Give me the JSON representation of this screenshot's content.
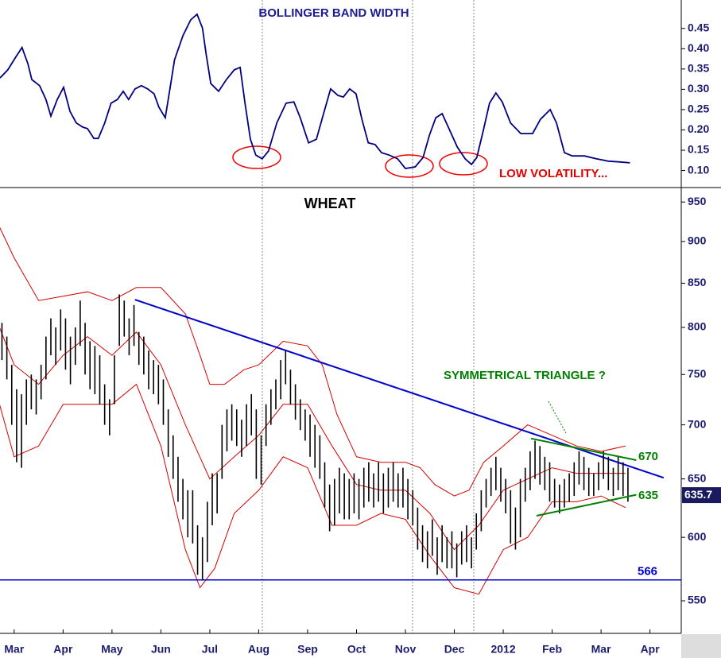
{
  "chart_data": [
    {
      "type": "line",
      "title": "BOLLINGER BAND WIDTH",
      "annotation": "LOW VOLATILITY...",
      "color": "#000080",
      "xlim": [
        -0.29,
        13.64
      ],
      "ylim": [
        0.06,
        0.52
      ],
      "yticks": [
        {
          "value": 0.1,
          "label": "0.10"
        },
        0.15,
        {
          "value": 0.2,
          "label": "0.20"
        },
        0.25,
        {
          "value": 0.3,
          "label": "0.30"
        },
        0.35,
        {
          "value": 0.4,
          "label": "0.40"
        },
        0.45
      ],
      "x": [
        -0.29,
        -0.13,
        0.03,
        0.16,
        0.28,
        0.36,
        0.52,
        0.65,
        0.75,
        0.88,
        1.01,
        1.14,
        1.27,
        1.4,
        1.5,
        1.63,
        1.72,
        1.85,
        1.98,
        2.11,
        2.23,
        2.34,
        2.47,
        2.6,
        2.73,
        2.86,
        2.96,
        3.09,
        3.19,
        3.28,
        3.45,
        3.61,
        3.74,
        3.85,
        3.93,
        4.02,
        4.18,
        4.34,
        4.5,
        4.62,
        4.72,
        4.83,
        4.94,
        5.07,
        5.2,
        5.37,
        5.56,
        5.72,
        5.85,
        6.02,
        6.18,
        6.34,
        6.47,
        6.62,
        6.73,
        6.86,
        6.99,
        7.11,
        7.24,
        7.38,
        7.51,
        7.67,
        7.84,
        8,
        8.2,
        8.36,
        8.49,
        8.62,
        8.75,
        8.89,
        9.06,
        9.22,
        9.35,
        9.46,
        9.59,
        9.72,
        9.85,
        9.98,
        10.15,
        10.36,
        10.6,
        10.76,
        10.96,
        11.09,
        11.25,
        11.41,
        11.66,
        11.9,
        12.15,
        12.39,
        12.59
      ],
      "values": [
        0.328,
        0.348,
        0.379,
        0.403,
        0.363,
        0.324,
        0.309,
        0.275,
        0.234,
        0.275,
        0.305,
        0.246,
        0.217,
        0.207,
        0.203,
        0.179,
        0.179,
        0.217,
        0.266,
        0.275,
        0.295,
        0.275,
        0.301,
        0.309,
        0.301,
        0.289,
        0.256,
        0.23,
        0.305,
        0.373,
        0.432,
        0.471,
        0.485,
        0.451,
        0.383,
        0.314,
        0.295,
        0.324,
        0.348,
        0.354,
        0.266,
        0.177,
        0.138,
        0.129,
        0.148,
        0.217,
        0.266,
        0.269,
        0.23,
        0.168,
        0.177,
        0.246,
        0.301,
        0.285,
        0.281,
        0.301,
        0.289,
        0.226,
        0.168,
        0.164,
        0.144,
        0.138,
        0.129,
        0.105,
        0.109,
        0.132,
        0.187,
        0.23,
        0.24,
        0.203,
        0.158,
        0.129,
        0.115,
        0.132,
        0.197,
        0.266,
        0.291,
        0.269,
        0.217,
        0.191,
        0.191,
        0.226,
        0.25,
        0.217,
        0.144,
        0.136,
        0.136,
        0.129,
        0.123,
        0.121,
        0.119
      ]
    },
    {
      "type": "range-bar",
      "title": "WHEAT",
      "annotation": "SYMMETRICAL TRIANGLE ?",
      "log_scale": true,
      "color": "#000000",
      "xlim": [
        -0.29,
        13.64
      ],
      "ylim": [
        526,
        968
      ],
      "yticks": [
        550,
        600,
        650,
        700,
        750,
        800,
        850,
        900,
        950
      ],
      "xticks": [
        {
          "value": 0,
          "label": "Mar"
        },
        {
          "value": 1,
          "label": "Apr"
        },
        {
          "value": 2,
          "label": "May"
        },
        {
          "value": 3,
          "label": "Jun"
        },
        {
          "value": 4,
          "label": "Jul"
        },
        {
          "value": 5,
          "label": "Aug"
        },
        {
          "value": 6,
          "label": "Sep"
        },
        {
          "value": 7,
          "label": "Oct"
        },
        {
          "value": 8,
          "label": "Nov"
        },
        {
          "value": 9,
          "label": "Dec"
        },
        {
          "value": 10,
          "label": "2012"
        },
        {
          "value": 11,
          "label": "Feb"
        },
        {
          "value": 12,
          "label": "Mar"
        },
        {
          "value": 13,
          "label": "Apr"
        }
      ],
      "bars": [
        {
          "x": -0.25,
          "high": 805,
          "low": 765
        },
        {
          "x": -0.15,
          "high": 790,
          "low": 745
        },
        {
          "x": -0.05,
          "high": 760,
          "low": 700
        },
        {
          "x": 0.05,
          "high": 735,
          "low": 665
        },
        {
          "x": 0.15,
          "high": 730,
          "low": 660
        },
        {
          "x": 0.25,
          "high": 745,
          "low": 700
        },
        {
          "x": 0.35,
          "high": 750,
          "low": 715
        },
        {
          "x": 0.45,
          "high": 745,
          "low": 710
        },
        {
          "x": 0.55,
          "high": 760,
          "low": 725
        },
        {
          "x": 0.65,
          "high": 790,
          "low": 745
        },
        {
          "x": 0.75,
          "high": 810,
          "low": 770
        },
        {
          "x": 0.85,
          "high": 800,
          "low": 760
        },
        {
          "x": 0.95,
          "high": 820,
          "low": 775
        },
        {
          "x": 1.05,
          "high": 810,
          "low": 755
        },
        {
          "x": 1.15,
          "high": 790,
          "low": 740
        },
        {
          "x": 1.25,
          "high": 800,
          "low": 760
        },
        {
          "x": 1.35,
          "high": 830,
          "low": 780
        },
        {
          "x": 1.45,
          "high": 805,
          "low": 750
        },
        {
          "x": 1.55,
          "high": 785,
          "low": 735
        },
        {
          "x": 1.65,
          "high": 780,
          "low": 730
        },
        {
          "x": 1.75,
          "high": 770,
          "low": 720
        },
        {
          "x": 1.85,
          "high": 740,
          "low": 700
        },
        {
          "x": 1.95,
          "high": 725,
          "low": 690
        },
        {
          "x": 2.05,
          "high": 770,
          "low": 720
        },
        {
          "x": 2.15,
          "high": 837,
          "low": 780
        },
        {
          "x": 2.25,
          "high": 830,
          "low": 790
        },
        {
          "x": 2.35,
          "high": 810,
          "low": 770
        },
        {
          "x": 2.45,
          "high": 825,
          "low": 780
        },
        {
          "x": 2.55,
          "high": 795,
          "low": 760
        },
        {
          "x": 2.65,
          "high": 790,
          "low": 750
        },
        {
          "x": 2.75,
          "high": 775,
          "low": 735
        },
        {
          "x": 2.85,
          "high": 765,
          "low": 730
        },
        {
          "x": 2.95,
          "high": 760,
          "low": 720
        },
        {
          "x": 3.05,
          "high": 745,
          "low": 700
        },
        {
          "x": 3.15,
          "high": 715,
          "low": 670
        },
        {
          "x": 3.25,
          "high": 690,
          "low": 650
        },
        {
          "x": 3.35,
          "high": 670,
          "low": 630
        },
        {
          "x": 3.45,
          "high": 650,
          "low": 615
        },
        {
          "x": 3.55,
          "high": 640,
          "low": 600
        },
        {
          "x": 3.65,
          "high": 640,
          "low": 595
        },
        {
          "x": 3.75,
          "high": 610,
          "low": 570
        },
        {
          "x": 3.85,
          "high": 600,
          "low": 566
        },
        {
          "x": 3.95,
          "high": 630,
          "low": 580
        },
        {
          "x": 4.05,
          "high": 655,
          "low": 610
        },
        {
          "x": 4.15,
          "high": 655,
          "low": 620
        },
        {
          "x": 4.25,
          "high": 700,
          "low": 650
        },
        {
          "x": 4.35,
          "high": 715,
          "low": 675
        },
        {
          "x": 4.45,
          "high": 720,
          "low": 685
        },
        {
          "x": 4.55,
          "high": 715,
          "low": 680
        },
        {
          "x": 4.65,
          "high": 705,
          "low": 670
        },
        {
          "x": 4.75,
          "high": 720,
          "low": 680
        },
        {
          "x": 4.85,
          "high": 730,
          "low": 690
        },
        {
          "x": 4.95,
          "high": 715,
          "low": 650
        },
        {
          "x": 5.05,
          "high": 690,
          "low": 645
        },
        {
          "x": 5.15,
          "high": 720,
          "low": 680
        },
        {
          "x": 5.25,
          "high": 735,
          "low": 700
        },
        {
          "x": 5.35,
          "high": 745,
          "low": 715
        },
        {
          "x": 5.45,
          "high": 765,
          "low": 725
        },
        {
          "x": 5.55,
          "high": 775,
          "low": 740
        },
        {
          "x": 5.65,
          "high": 755,
          "low": 720
        },
        {
          "x": 5.75,
          "high": 740,
          "low": 705
        },
        {
          "x": 5.85,
          "high": 725,
          "low": 695
        },
        {
          "x": 5.95,
          "high": 715,
          "low": 685
        },
        {
          "x": 6.05,
          "high": 710,
          "low": 670
        },
        {
          "x": 6.15,
          "high": 700,
          "low": 660
        },
        {
          "x": 6.25,
          "high": 690,
          "low": 650
        },
        {
          "x": 6.35,
          "high": 665,
          "low": 625
        },
        {
          "x": 6.45,
          "high": 645,
          "low": 605
        },
        {
          "x": 6.55,
          "high": 650,
          "low": 610
        },
        {
          "x": 6.65,
          "high": 660,
          "low": 620
        },
        {
          "x": 6.75,
          "high": 655,
          "low": 615
        },
        {
          "x": 6.85,
          "high": 650,
          "low": 615
        },
        {
          "x": 6.95,
          "high": 655,
          "low": 620
        },
        {
          "x": 7.05,
          "high": 650,
          "low": 615
        },
        {
          "x": 7.15,
          "high": 660,
          "low": 625
        },
        {
          "x": 7.25,
          "high": 665,
          "low": 630
        },
        {
          "x": 7.35,
          "high": 655,
          "low": 625
        },
        {
          "x": 7.45,
          "high": 665,
          "low": 630
        },
        {
          "x": 7.55,
          "high": 655,
          "low": 620
        },
        {
          "x": 7.65,
          "high": 660,
          "low": 625
        },
        {
          "x": 7.75,
          "high": 665,
          "low": 630
        },
        {
          "x": 7.85,
          "high": 655,
          "low": 625
        },
        {
          "x": 7.95,
          "high": 660,
          "low": 625
        },
        {
          "x": 8.05,
          "high": 650,
          "low": 615
        },
        {
          "x": 8.15,
          "high": 640,
          "low": 610
        },
        {
          "x": 8.25,
          "high": 625,
          "low": 590
        },
        {
          "x": 8.35,
          "high": 610,
          "low": 580
        },
        {
          "x": 8.45,
          "high": 605,
          "low": 575
        },
        {
          "x": 8.55,
          "high": 615,
          "low": 585
        },
        {
          "x": 8.65,
          "high": 600,
          "low": 570
        },
        {
          "x": 8.75,
          "high": 610,
          "low": 580
        },
        {
          "x": 8.85,
          "high": 600,
          "low": 575
        },
        {
          "x": 8.95,
          "high": 605,
          "low": 575
        },
        {
          "x": 9.05,
          "high": 595,
          "low": 568
        },
        {
          "x": 9.15,
          "high": 605,
          "low": 578
        },
        {
          "x": 9.25,
          "high": 610,
          "low": 580
        },
        {
          "x": 9.35,
          "high": 600,
          "low": 575
        },
        {
          "x": 9.45,
          "high": 620,
          "low": 590
        },
        {
          "x": 9.55,
          "high": 640,
          "low": 605
        },
        {
          "x": 9.65,
          "high": 650,
          "low": 625
        },
        {
          "x": 9.75,
          "high": 660,
          "low": 635
        },
        {
          "x": 9.85,
          "high": 670,
          "low": 640
        },
        {
          "x": 9.95,
          "high": 660,
          "low": 630
        },
        {
          "x": 10.05,
          "high": 650,
          "low": 620
        },
        {
          "x": 10.15,
          "high": 640,
          "low": 595
        },
        {
          "x": 10.25,
          "high": 625,
          "low": 590
        },
        {
          "x": 10.35,
          "high": 650,
          "low": 600
        },
        {
          "x": 10.45,
          "high": 660,
          "low": 630
        },
        {
          "x": 10.55,
          "high": 675,
          "low": 640
        },
        {
          "x": 10.65,
          "high": 685,
          "low": 650
        },
        {
          "x": 10.75,
          "high": 680,
          "low": 645
        },
        {
          "x": 10.85,
          "high": 670,
          "low": 640
        },
        {
          "x": 10.95,
          "high": 665,
          "low": 630
        },
        {
          "x": 11.05,
          "high": 650,
          "low": 625
        },
        {
          "x": 11.15,
          "high": 645,
          "low": 620
        },
        {
          "x": 11.25,
          "high": 650,
          "low": 625
        },
        {
          "x": 11.35,
          "high": 655,
          "low": 630
        },
        {
          "x": 11.45,
          "high": 665,
          "low": 635
        },
        {
          "x": 11.55,
          "high": 675,
          "low": 645
        },
        {
          "x": 11.65,
          "high": 670,
          "low": 640
        },
        {
          "x": 11.75,
          "high": 660,
          "low": 635
        },
        {
          "x": 11.85,
          "high": 655,
          "low": 635
        },
        {
          "x": 11.95,
          "high": 665,
          "low": 640
        },
        {
          "x": 12.05,
          "high": 675,
          "low": 650
        },
        {
          "x": 12.15,
          "high": 670,
          "low": 640
        },
        {
          "x": 12.25,
          "high": 660,
          "low": 635
        },
        {
          "x": 12.35,
          "high": 670,
          "low": 640
        },
        {
          "x": 12.45,
          "high": 665,
          "low": 635
        },
        {
          "x": 12.55,
          "high": 660,
          "low": 630
        }
      ],
      "bands": [
        {
          "color": "#d40000",
          "x": [
            -0.3,
            0,
            0.5,
            1,
            1.5,
            2,
            2.5,
            3,
            3.5,
            3.8,
            4,
            4.3,
            4.7,
            5,
            5.5,
            6,
            6.3,
            6.6,
            7,
            7.5,
            8,
            8.3,
            8.6,
            9,
            9.3,
            9.6,
            10,
            10.5,
            11,
            11.5,
            12,
            12.5
          ],
          "values": [
            918,
            880,
            830,
            835,
            840,
            830,
            845,
            845,
            815,
            770,
            740,
            740,
            755,
            760,
            785,
            780,
            760,
            710,
            670,
            665,
            665,
            660,
            645,
            635,
            640,
            665,
            680,
            700,
            690,
            680,
            675,
            680
          ]
        },
        {
          "color": "#d40000",
          "x": [
            -0.3,
            0,
            0.5,
            1,
            1.5,
            2,
            2.5,
            3,
            3.5,
            4,
            4.5,
            5,
            5.5,
            6,
            6.5,
            7,
            7.5,
            8,
            8.5,
            9,
            9.5,
            10,
            10.5,
            11,
            11.5,
            12,
            12.5
          ],
          "values": [
            800,
            760,
            740,
            770,
            790,
            770,
            795,
            760,
            700,
            650,
            670,
            690,
            720,
            720,
            680,
            645,
            640,
            640,
            620,
            590,
            610,
            640,
            650,
            660,
            655,
            655,
            655
          ]
        },
        {
          "color": "#d40000",
          "x": [
            -0.3,
            0,
            0.5,
            1,
            1.5,
            2,
            2.5,
            3,
            3.5,
            3.8,
            4.1,
            4.5,
            5,
            5.5,
            6,
            6.5,
            7,
            7.5,
            8,
            8.5,
            9,
            9.5,
            10,
            10.5,
            11,
            11.5,
            12,
            12.5
          ],
          "values": [
            720,
            670,
            680,
            720,
            720,
            720,
            740,
            680,
            590,
            560,
            575,
            620,
            640,
            670,
            660,
            610,
            610,
            620,
            615,
            585,
            560,
            555,
            590,
            600,
            630,
            630,
            635,
            625
          ]
        }
      ],
      "trendline": {
        "x": [
          2.47,
          13.28
        ],
        "y": [
          831,
          651
        ],
        "color": "#0000cc"
      },
      "support": {
        "value": 566,
        "color": "#0000cc"
      },
      "triangle": [
        {
          "x": [
            10.57,
            12.72
          ],
          "y": [
            687,
            667
          ],
          "level": 670,
          "color": "#008000"
        },
        {
          "x": [
            10.68,
            12.72
          ],
          "y": [
            618,
            636
          ],
          "level": 635,
          "color": "#008000"
        }
      ],
      "last_price": 635.7
    }
  ]
}
